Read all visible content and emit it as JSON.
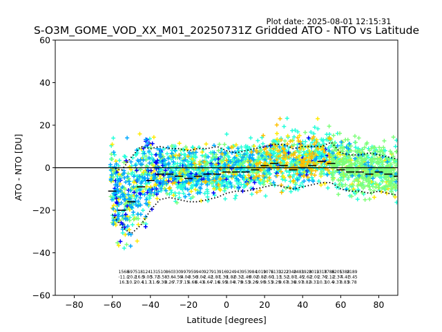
{
  "plot_date_text": "Plot date: 2025-08-01 12:15:31",
  "chart_data": {
    "type": "scatter",
    "title": "S-O3M_GOME_VOD_XX_M01_20250731Z Gridded ATO - NTO vs Latitude",
    "xlabel": "Latitude [degrees]",
    "ylabel": "ATO - NTO [DU]",
    "xlim": [
      -90,
      90
    ],
    "ylim": [
      -60,
      60
    ],
    "xticks": [
      -80,
      -60,
      -40,
      -20,
      0,
      20,
      40,
      60,
      80
    ],
    "xtick_labels": [
      "−80",
      "−60",
      "−40",
      "−20",
      "0",
      "20",
      "40",
      "60",
      "80"
    ],
    "yticks": [
      -60,
      -40,
      -20,
      0,
      20,
      40,
      60
    ],
    "ytick_labels": [
      "−60",
      "−40",
      "−20",
      "0",
      "20",
      "40",
      "60"
    ],
    "grid": false,
    "marker": "+",
    "colors": {
      "blue": "#0000ff",
      "azure": "#00a8ff",
      "cyan": "#26ffda",
      "green": "#7dff7a",
      "yellow": "#ffea00",
      "gold": "#ffc000",
      "zero_line": "#000000",
      "mean_line": "#000000"
    },
    "zero_line": 0,
    "mean_profile": {
      "lat": [
        -60,
        -55,
        -50,
        -45,
        -40,
        -35,
        -30,
        -25,
        -20,
        -15,
        -10,
        -5,
        0,
        5,
        10,
        15,
        20,
        25,
        30,
        35,
        40,
        45,
        50,
        55,
        60,
        65,
        70,
        75,
        80,
        85,
        90
      ],
      "mean": [
        -11,
        -20,
        -16,
        -9,
        -6,
        -3,
        -3,
        -4,
        -5,
        -4,
        -3,
        -3,
        -2,
        -2,
        -2,
        -1,
        1,
        2,
        1,
        -1,
        0,
        1,
        3,
        2,
        -1,
        -2,
        -2,
        -3,
        -2,
        -3,
        -4
      ]
    },
    "std_upper": {
      "lat": [
        -60,
        -55,
        -50,
        -45,
        -40,
        -35,
        -30,
        -25,
        -20,
        -15,
        -10,
        -5,
        0,
        5,
        10,
        15,
        20,
        25,
        30,
        35,
        40,
        45,
        50,
        55,
        60,
        65,
        70,
        75,
        80,
        85,
        90
      ],
      "value": [
        0,
        -1,
        5,
        10,
        9,
        10,
        9,
        9,
        8,
        9,
        9,
        10,
        8,
        7,
        8,
        9,
        10,
        11,
        11,
        9,
        10,
        10,
        10,
        12,
        7,
        6,
        6,
        7,
        6,
        5,
        4
      ]
    },
    "std_lower": {
      "lat": [
        -60,
        -55,
        -50,
        -45,
        -40,
        -35,
        -30,
        -25,
        -20,
        -15,
        -10,
        -5,
        0,
        5,
        10,
        15,
        20,
        25,
        30,
        35,
        40,
        45,
        50,
        55,
        60,
        65,
        70,
        75,
        80,
        85,
        90
      ],
      "value": [
        -22,
        -28,
        -31,
        -27,
        -20,
        -15,
        -14,
        -15,
        -16,
        -16,
        -15,
        -14,
        -12,
        -11,
        -11,
        -10,
        -9,
        -8,
        -9,
        -10,
        -9,
        -8,
        -7,
        -7,
        -10,
        -11,
        -11,
        -12,
        -11,
        -12,
        -13
      ]
    },
    "stat_columns": [
      {
        "lat": -54,
        "lines": [
          "1568",
          "-11.1",
          "16.3"
        ]
      },
      {
        "lat": -50,
        "lines": [
          "697",
          "-20.2",
          "10.1"
        ]
      },
      {
        "lat": -46,
        "lines": [
          "518",
          "-16.5",
          "20.4"
        ]
      },
      {
        "lat": -42,
        "lines": [
          "124",
          "-9.03",
          "11.7"
        ]
      },
      {
        "lat": -38,
        "lines": [
          "131",
          "-5.72",
          "11.6"
        ]
      },
      {
        "lat": -34,
        "lines": [
          "510",
          "-5.58",
          "9.30"
        ]
      },
      {
        "lat": -30,
        "lines": [
          "860",
          "-3.6",
          "8.26"
        ]
      },
      {
        "lat": -26,
        "lines": [
          "330",
          "-4.59",
          "7.73"
        ]
      },
      {
        "lat": -22,
        "lines": [
          "997",
          "-4.04",
          "7.15"
        ]
      },
      {
        "lat": -18,
        "lines": [
          "959",
          "-3.56",
          "6.68"
        ]
      },
      {
        "lat": -14,
        "lines": [
          "940",
          "-3.04",
          "6.43"
        ]
      },
      {
        "lat": -10,
        "lines": [
          "927",
          "-2.42",
          "6.64"
        ]
      },
      {
        "lat": -6,
        "lines": [
          "913",
          "-1.87",
          "7.16"
        ]
      },
      {
        "lat": -2,
        "lines": [
          "916",
          "-1.39",
          "6.95"
        ]
      },
      {
        "lat": 2,
        "lines": [
          "924",
          "-1.82",
          "8.04"
        ]
      },
      {
        "lat": 6,
        "lines": [
          "943",
          "-0.32",
          "8.79"
        ]
      },
      {
        "lat": 10,
        "lines": [
          "953",
          "-1.49",
          "9.53"
        ]
      },
      {
        "lat": 14,
        "lines": [
          "984",
          "-0.02",
          "9.26"
        ]
      },
      {
        "lat": 18,
        "lines": [
          "1019",
          "-0.82",
          "9.90"
        ]
      },
      {
        "lat": 22,
        "lines": [
          "1076",
          "-0.60",
          "9.53"
        ]
      },
      {
        "lat": 26,
        "lines": [
          "1133",
          "-1.13",
          "9.29"
        ]
      },
      {
        "lat": 30,
        "lines": [
          "1222",
          "-1.52",
          "9.67"
        ]
      },
      {
        "lat": 34,
        "lines": [
          "2340",
          "-1.87",
          "8.36"
        ]
      },
      {
        "lat": 38,
        "lines": [
          "2481",
          "-1.45",
          "8.97"
        ]
      },
      {
        "lat": 42,
        "lines": [
          "3928",
          "-2.62",
          "8.82"
        ]
      },
      {
        "lat": 46,
        "lines": [
          "3012",
          "-2.01",
          "9.31"
        ]
      },
      {
        "lat": 50,
        "lines": [
          "5318",
          "-2.76",
          "10.3"
        ]
      },
      {
        "lat": 54,
        "lines": [
          "7786",
          "-2.12",
          "10.4"
        ]
      },
      {
        "lat": 58,
        "lines": [
          "8205",
          "-2.37",
          "9.37"
        ]
      },
      {
        "lat": 62,
        "lines": [
          "1388",
          "-4.41",
          "8.83"
        ]
      },
      {
        "lat": 66,
        "lines": [
          "2189",
          "-3.45",
          "9.78"
        ]
      }
    ]
  }
}
